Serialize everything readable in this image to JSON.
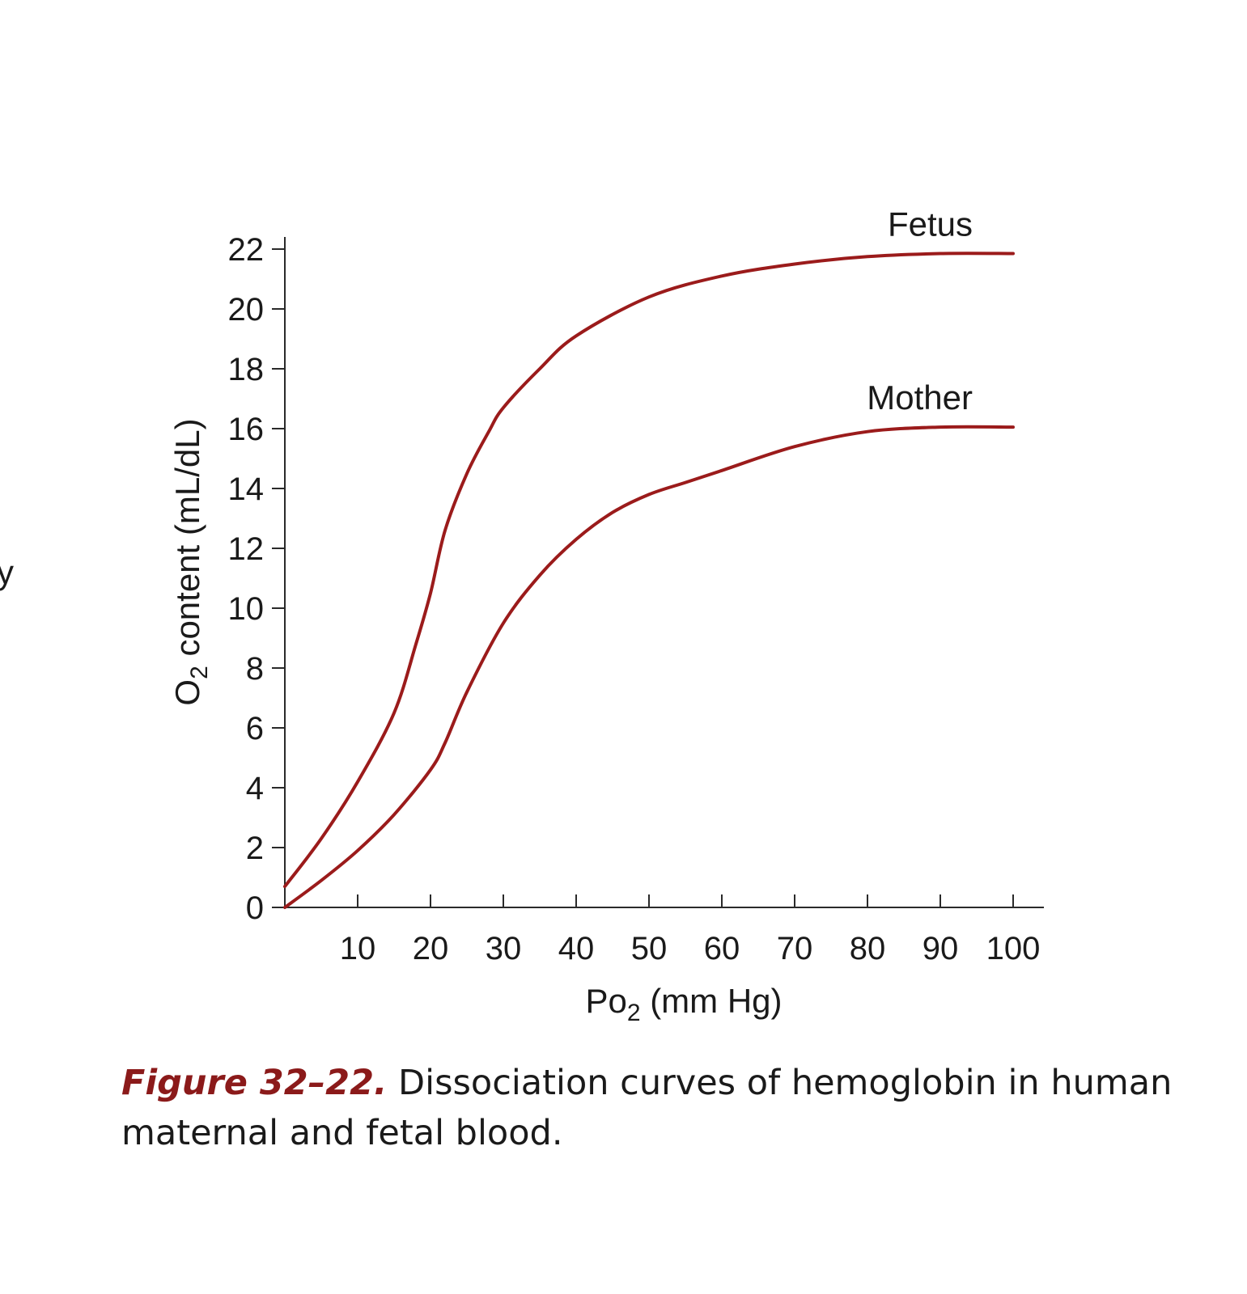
{
  "margin_fragment": "y",
  "chart_data": {
    "type": "line",
    "xlabel": "Po",
    "xlabel_sub": "2",
    "xlabel_unit": " (mm Hg)",
    "ylabel": "O",
    "ylabel_sub": "2",
    "ylabel_unit": " content (mL/dL)",
    "xlim": [
      0,
      100
    ],
    "ylim": [
      0,
      22
    ],
    "x_ticks": [
      10,
      20,
      30,
      40,
      50,
      60,
      70,
      80,
      90,
      100
    ],
    "y_ticks": [
      0,
      2,
      4,
      6,
      8,
      10,
      12,
      14,
      16,
      18,
      20,
      22
    ],
    "grid": false,
    "series": [
      {
        "name": "Fetus",
        "color": "#9b1b1b",
        "x": [
          0,
          5,
          10,
          15,
          18,
          20,
          22,
          25,
          28,
          30,
          35,
          40,
          50,
          60,
          70,
          80,
          90,
          100
        ],
        "y": [
          0.7,
          2.3,
          4.2,
          6.5,
          8.8,
          10.5,
          12.6,
          14.5,
          15.9,
          16.7,
          18.0,
          19.1,
          20.4,
          21.1,
          21.5,
          21.75,
          21.85,
          21.85
        ]
      },
      {
        "name": "Mother",
        "color": "#9b1b1b",
        "x": [
          0,
          5,
          10,
          15,
          20,
          22,
          25,
          30,
          35,
          40,
          45,
          50,
          55,
          60,
          70,
          80,
          90,
          100
        ],
        "y": [
          0,
          0.9,
          1.9,
          3.1,
          4.6,
          5.5,
          7.2,
          9.5,
          11.1,
          12.3,
          13.2,
          13.8,
          14.2,
          14.6,
          15.4,
          15.9,
          16.05,
          16.05
        ]
      }
    ]
  },
  "caption": {
    "figure_label": "Figure 32–22.",
    "text": "Dissociation curves of hemoglobin in human maternal and fetal blood."
  }
}
